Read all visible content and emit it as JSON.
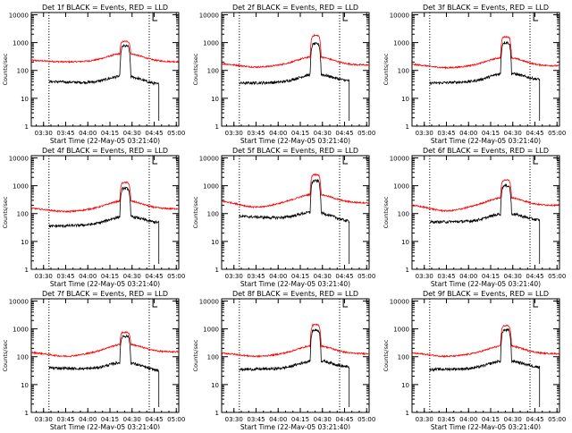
{
  "panels": [
    {
      "title": "Det 1f BLACK = Events, RED = LLD",
      "black_base": 40,
      "black_end": 30,
      "red_base": 230,
      "red_end": 210,
      "red_dip": 10,
      "peak_black": 750,
      "peak_red": 1100
    },
    {
      "title": "Det 2f BLACK = Events, RED = LLD",
      "black_base": 35,
      "black_end": 40,
      "red_base": 180,
      "red_end": 160,
      "red_dip": 25,
      "peak_black": 900,
      "peak_red": 1800
    },
    {
      "title": "Det 3f BLACK = Events, RED = LLD",
      "black_base": 35,
      "black_end": 45,
      "red_base": 170,
      "red_end": 150,
      "red_dip": 25,
      "peak_black": 1000,
      "peak_red": 1600
    },
    {
      "title": "Det 4f BLACK = Events, RED = LLD",
      "black_base": 35,
      "black_end": 45,
      "red_base": 160,
      "red_end": 150,
      "red_dip": 25,
      "peak_black": 800,
      "peak_red": 1300
    },
    {
      "title": "Det 5f BLACK = Events, RED = LLD",
      "black_base": 80,
      "black_end": 50,
      "red_base": 290,
      "red_end": 250,
      "red_dip": 40,
      "peak_black": 1500,
      "peak_red": 2500
    },
    {
      "title": "Det 6f BLACK = Events, RED = LLD",
      "black_base": 50,
      "black_end": 55,
      "red_base": 210,
      "red_end": 200,
      "red_dip": 40,
      "peak_black": 1000,
      "peak_red": 1600
    },
    {
      "title": "Det 7f BLACK = Events, RED = LLD",
      "black_base": 40,
      "black_end": 30,
      "red_base": 150,
      "red_end": 150,
      "red_dip": 30,
      "peak_black": 550,
      "peak_red": 750
    },
    {
      "title": "Det 8f BLACK = Events, RED = LLD",
      "black_base": 35,
      "black_end": 40,
      "red_base": 140,
      "red_end": 130,
      "red_dip": 25,
      "peak_black": 900,
      "peak_red": 1400
    },
    {
      "title": "Det 9f BLACK = Events, RED = LLD",
      "black_base": 35,
      "black_end": 40,
      "red_base": 140,
      "red_end": 130,
      "red_dip": 25,
      "peak_black": 900,
      "peak_red": 1300
    }
  ],
  "xlabel": "Start Time (22-May-05 03:21:40)",
  "ylabel": "Counts/sec",
  "x_ticks": [
    "03:30",
    "03:45",
    "04:00",
    "04:15",
    "04:30",
    "04:45",
    "05:00"
  ],
  "y_ticks": [
    "1",
    "10",
    "100",
    "1000",
    "10000"
  ],
  "colors": {
    "events": "#000000",
    "lld": "#ff0000",
    "axes": "#000000"
  },
  "chart_data": {
    "type": "line",
    "yscale": "log",
    "xlim": [
      "03:21:40",
      "05:01:40"
    ],
    "ylim": [
      1,
      12000
    ],
    "dotted_lines_x": [
      "03:33:40",
      "04:41:40"
    ],
    "marker_x": "04:44:10",
    "events_start": "03:33:40",
    "events_end": "04:48:10",
    "flare_rise": "04:21:40",
    "flare_fall": "04:29:10",
    "series": [
      {
        "name": "BLACK = Events",
        "color": "#000000"
      },
      {
        "name": "RED = LLD",
        "color": "#ff0000"
      }
    ]
  }
}
